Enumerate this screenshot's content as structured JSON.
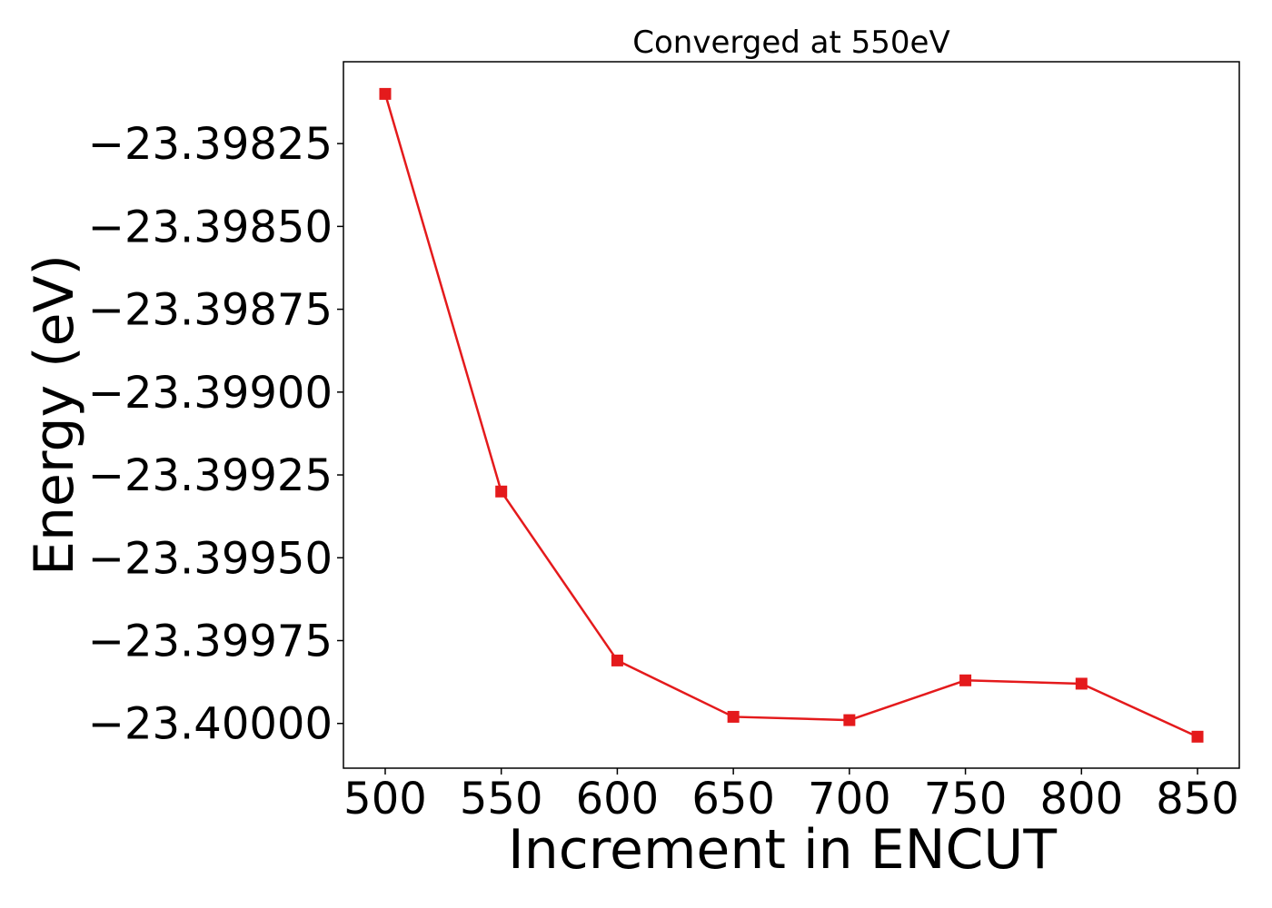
{
  "chart_data": {
    "type": "line",
    "title": "Converged at 550eV",
    "xlabel": "Increment in ENCUT",
    "ylabel": "Energy (eV)",
    "x": [
      500,
      550,
      600,
      650,
      700,
      750,
      800,
      850
    ],
    "series": [
      {
        "values": [
          -23.3981,
          -23.3993,
          -23.39981,
          -23.39998,
          -23.39999,
          -23.39987,
          -23.39988,
          -23.40004
        ],
        "color": "#e41a1c",
        "marker": "square"
      }
    ],
    "xticks": [
      500,
      550,
      600,
      650,
      700,
      750,
      800,
      850
    ],
    "xtick_labels": [
      "500",
      "550",
      "600",
      "650",
      "700",
      "750",
      "800",
      "850"
    ],
    "yticks": [
      -23.39825,
      -23.3985,
      -23.39875,
      -23.399,
      -23.39925,
      -23.3995,
      -23.39975,
      -23.4
    ],
    "ytick_labels": [
      "−23.39825",
      "−23.39850",
      "−23.39875",
      "−23.39900",
      "−23.39925",
      "−23.39950",
      "−23.39975",
      "−23.40000"
    ],
    "xlim": [
      482,
      868
    ],
    "ylim": [
      -23.400135,
      -23.398003
    ],
    "grid": false,
    "legend": "none"
  }
}
